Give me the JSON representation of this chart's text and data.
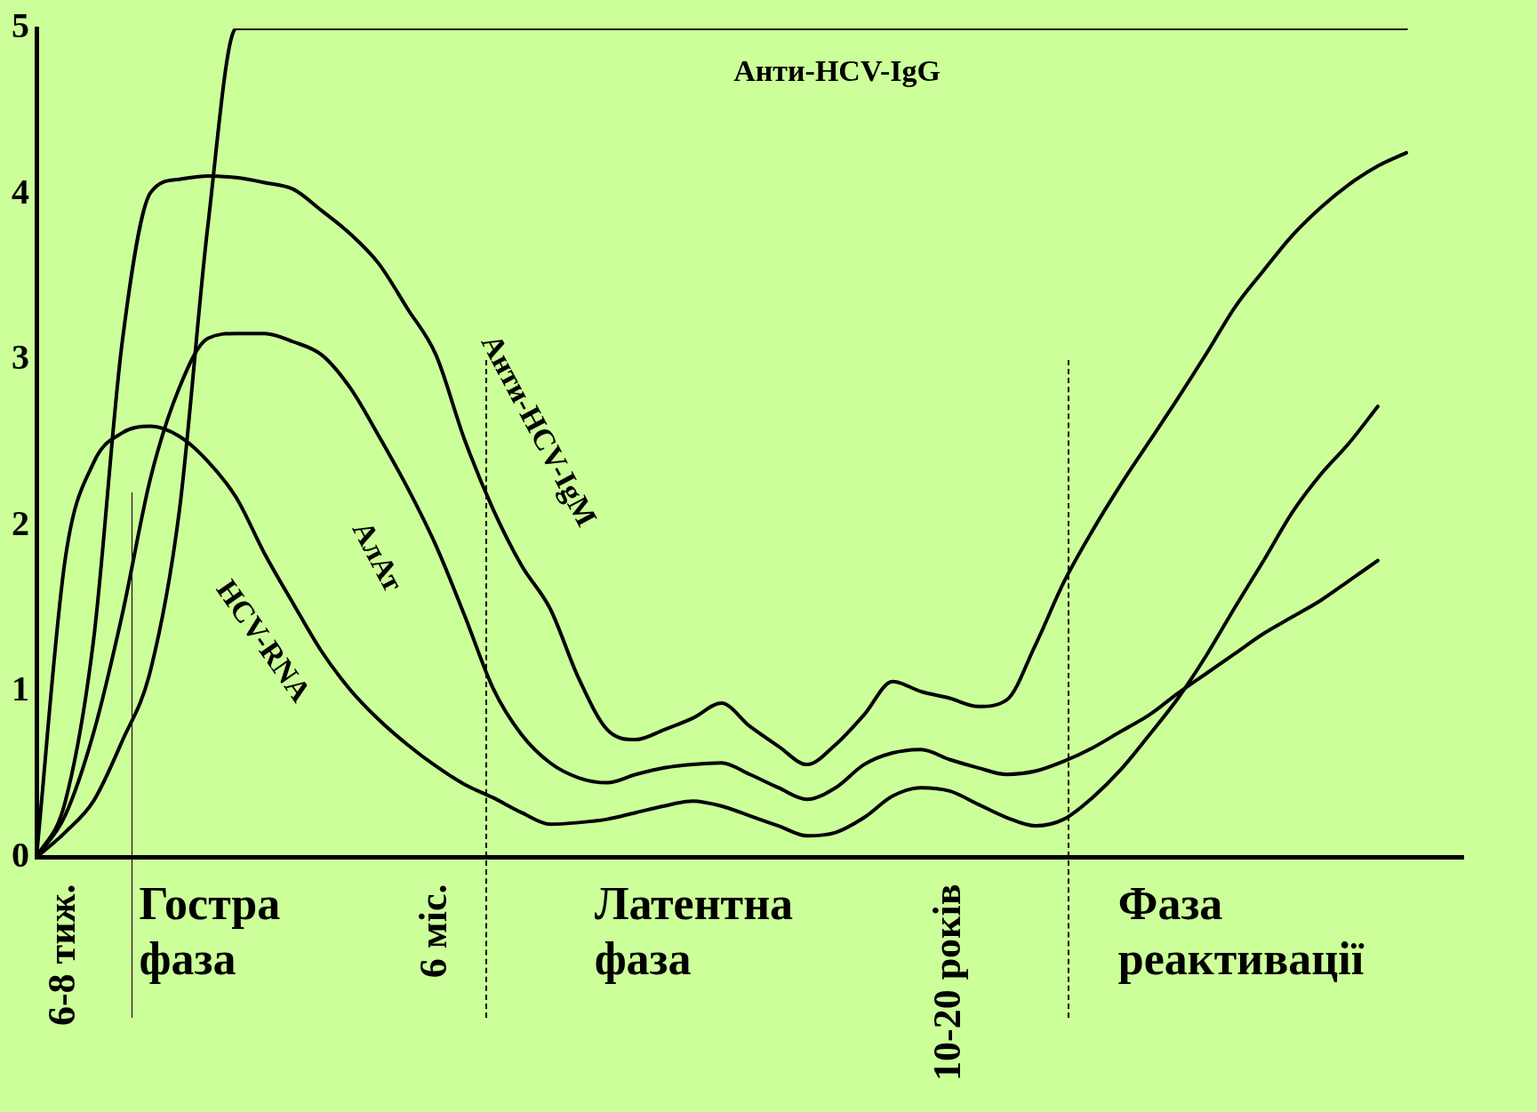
{
  "chart_data": {
    "type": "line",
    "categories": [
      null,
      "6-8 тиж.",
      null,
      null,
      null,
      null,
      null,
      null,
      null,
      null,
      null,
      null,
      null,
      null,
      "6 міс.",
      null,
      null,
      null,
      null,
      null,
      null,
      null,
      null,
      null,
      null,
      null,
      null,
      null,
      null,
      null,
      null,
      null,
      "10-20 років",
      null,
      null,
      null,
      null,
      null,
      null,
      null,
      null,
      null,
      null,
      null,
      null,
      null,
      null,
      null,
      null,
      null,
      null
    ],
    "ylim": [
      0,
      5
    ],
    "yticks": [
      0,
      1,
      2,
      3,
      4,
      5
    ],
    "grid": false,
    "legend": false,
    "series": [
      {
        "color": "#000000",
        "values": [
          0,
          0.15,
          0.34,
          0.7,
          1.13,
          2.08,
          3.8,
          5,
          5,
          5,
          5,
          5,
          5,
          5,
          5,
          5,
          5,
          5,
          5,
          5,
          5,
          5,
          5,
          5,
          5,
          5,
          5,
          5,
          5,
          5,
          5,
          5,
          5,
          5,
          5,
          5,
          5,
          5,
          5,
          5,
          5,
          5,
          5,
          5,
          5,
          5,
          5,
          5,
          5,
          null,
          null
        ]
      },
      {
        "color": "#000000",
        "values": [
          0,
          0.33,
          1.31,
          3.1,
          4.01,
          4.09,
          4.11,
          4.1,
          4.07,
          4.03,
          3.9,
          3.76,
          3.58,
          3.31,
          3.03,
          2.52,
          2.1,
          1.76,
          1.5,
          1.08,
          0.77,
          0.71,
          0.77,
          0.84,
          0.93,
          0.79,
          0.67,
          0.56,
          0.68,
          0.86,
          1.06,
          1.0,
          0.96,
          0.91,
          0.95,
          1.28,
          1.66,
          1.97,
          2.25,
          2.51,
          2.77,
          3.04,
          3.32,
          3.54,
          3.75,
          3.92,
          4.06,
          4.17,
          4.25,
          null,
          null
        ]
      },
      {
        "color": "#000000",
        "values": [
          0,
          0.25,
          0.75,
          1.46,
          2.29,
          2.83,
          3.13,
          3.16,
          3.16,
          3.11,
          3.03,
          2.83,
          2.54,
          2.23,
          1.88,
          1.46,
          1.02,
          0.74,
          0.57,
          0.48,
          0.45,
          0.5,
          0.54,
          0.56,
          0.57,
          0.5,
          0.42,
          0.35,
          0.42,
          0.56,
          0.63,
          0.65,
          0.59,
          0.54,
          0.5,
          0.52,
          0.58,
          0.66,
          0.76,
          0.86,
          0.99,
          1.11,
          1.23,
          1.35,
          1.45,
          1.55,
          1.67,
          1.79,
          null,
          null,
          null
        ]
      },
      {
        "color": "#000000",
        "values": [
          0,
          1.79,
          2.38,
          2.56,
          2.6,
          2.54,
          2.39,
          2.17,
          1.83,
          1.53,
          1.24,
          1.01,
          0.83,
          0.68,
          0.55,
          0.44,
          0.36,
          0.27,
          0.2,
          0.21,
          0.23,
          0.27,
          0.31,
          0.34,
          0.31,
          0.25,
          0.19,
          0.13,
          0.15,
          0.24,
          0.37,
          0.42,
          0.4,
          0.32,
          0.24,
          0.19,
          0.23,
          0.36,
          0.53,
          0.74,
          0.96,
          1.22,
          1.51,
          1.79,
          2.08,
          2.31,
          2.5,
          2.72,
          null,
          null,
          null
        ]
      }
    ],
    "annotations": [
      "Анти-HCV-IgG",
      "Анти-HCV-IgM",
      "АлАт",
      "HCV-RNA",
      "Гостра фаза",
      "Латентна фаза",
      "Фаза реактивації"
    ]
  }
}
